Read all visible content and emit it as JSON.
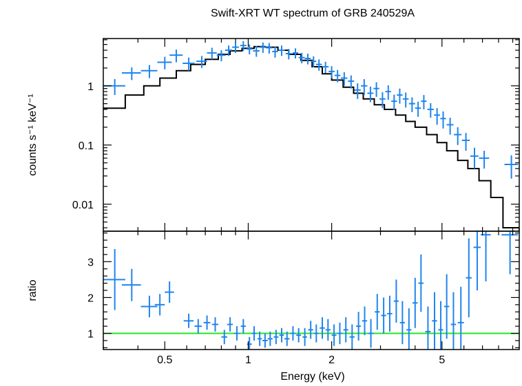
{
  "chart_data": {
    "type": "scatter",
    "title": "Swift-XRT WT spectrum of GRB 240529A",
    "xlabel": "Energy (keV)",
    "x_scale": "log",
    "xlim": [
      0.3,
      9.5
    ],
    "x_ticks": [
      0.5,
      1,
      2,
      5
    ],
    "x_tick_labels": [
      "0.5",
      "1",
      "2",
      "5"
    ],
    "colors": {
      "data": "#1f84ee",
      "model": "#000000",
      "unity_line": "#22e622",
      "frame": "#000000"
    },
    "panels": [
      {
        "name": "spectrum",
        "ylabel": "counts s⁻¹ keV⁻¹",
        "y_scale": "log",
        "ylim": [
          0.0035,
          6.3
        ],
        "y_ticks": [
          0.01,
          0.1,
          1
        ],
        "y_tick_labels": [
          "0.01",
          "0.1",
          "1"
        ],
        "data": {
          "x": [
            0.33,
            0.38,
            0.44,
            0.5,
            0.55,
            0.61,
            0.68,
            0.74,
            0.8,
            0.85,
            0.9,
            0.96,
            1.01,
            1.07,
            1.13,
            1.19,
            1.25,
            1.32,
            1.4,
            1.48,
            1.56,
            1.64,
            1.72,
            1.8,
            1.9,
            2.0,
            2.1,
            2.22,
            2.35,
            2.48,
            2.62,
            2.76,
            2.9,
            3.05,
            3.2,
            3.36,
            3.52,
            3.7,
            3.9,
            4.1,
            4.3,
            4.55,
            4.8,
            5.05,
            5.35,
            5.7,
            6.1,
            6.55,
            7.1,
            8.9
          ],
          "y": [
            1.0,
            1.65,
            1.8,
            2.5,
            3.3,
            2.4,
            2.6,
            3.6,
            3.3,
            4.0,
            4.5,
            4.8,
            4.2,
            3.9,
            4.5,
            4.4,
            3.8,
            4.0,
            3.5,
            3.6,
            3.0,
            2.9,
            2.6,
            2.3,
            2.1,
            1.75,
            1.5,
            1.35,
            1.2,
            0.85,
            1.0,
            0.75,
            0.9,
            0.6,
            0.8,
            0.55,
            0.7,
            0.6,
            0.5,
            0.42,
            0.55,
            0.4,
            0.32,
            0.28,
            0.22,
            0.15,
            0.12,
            0.065,
            0.06,
            0.047
          ],
          "xerr": [
            0.03,
            0.03,
            0.03,
            0.03,
            0.03,
            0.03,
            0.03,
            0.03,
            0.03,
            0.025,
            0.025,
            0.025,
            0.025,
            0.03,
            0.03,
            0.03,
            0.03,
            0.035,
            0.035,
            0.035,
            0.04,
            0.04,
            0.04,
            0.045,
            0.05,
            0.05,
            0.05,
            0.06,
            0.06,
            0.065,
            0.07,
            0.07,
            0.07,
            0.075,
            0.075,
            0.08,
            0.085,
            0.09,
            0.1,
            0.1,
            0.1,
            0.12,
            0.12,
            0.12,
            0.15,
            0.18,
            0.2,
            0.22,
            0.3,
            0.5
          ],
          "yerr": [
            0.3,
            0.4,
            0.45,
            0.6,
            0.8,
            0.6,
            0.6,
            0.8,
            0.7,
            0.8,
            0.9,
            0.9,
            0.8,
            0.8,
            0.9,
            0.9,
            0.8,
            0.8,
            0.7,
            0.7,
            0.6,
            0.6,
            0.55,
            0.5,
            0.45,
            0.4,
            0.35,
            0.35,
            0.3,
            0.25,
            0.3,
            0.22,
            0.25,
            0.18,
            0.22,
            0.16,
            0.2,
            0.17,
            0.14,
            0.12,
            0.15,
            0.11,
            0.1,
            0.09,
            0.07,
            0.05,
            0.04,
            0.025,
            0.02,
            0.02
          ]
        },
        "model_steps": {
          "edges": [
            0.3,
            0.36,
            0.42,
            0.48,
            0.55,
            0.62,
            0.7,
            0.78,
            0.86,
            0.95,
            1.05,
            1.15,
            1.28,
            1.4,
            1.55,
            1.7,
            1.85,
            2.0,
            2.2,
            2.4,
            2.6,
            2.85,
            3.1,
            3.4,
            3.7,
            4.0,
            4.4,
            4.8,
            5.2,
            5.7,
            6.2,
            6.8,
            7.5,
            8.3,
            9.5
          ],
          "values": [
            0.42,
            0.7,
            1.0,
            1.35,
            1.8,
            2.3,
            2.8,
            3.4,
            3.9,
            4.3,
            4.6,
            4.5,
            4.0,
            3.4,
            2.7,
            2.1,
            1.6,
            1.25,
            0.95,
            0.75,
            0.6,
            0.48,
            0.4,
            0.32,
            0.25,
            0.2,
            0.15,
            0.11,
            0.08,
            0.055,
            0.04,
            0.025,
            0.013,
            0.004
          ]
        }
      },
      {
        "name": "ratio",
        "ylabel": "ratio",
        "y_scale": "linear",
        "ylim": [
          0.55,
          3.85
        ],
        "y_ticks": [
          1,
          2,
          3
        ],
        "y_tick_labels": [
          "1",
          "2",
          "3"
        ],
        "reference_line": 1.0,
        "data": {
          "x": [
            0.33,
            0.38,
            0.44,
            0.48,
            0.52,
            0.61,
            0.66,
            0.71,
            0.76,
            0.82,
            0.86,
            0.91,
            0.96,
            1.01,
            1.05,
            1.1,
            1.15,
            1.2,
            1.26,
            1.32,
            1.38,
            1.45,
            1.52,
            1.6,
            1.68,
            1.76,
            1.85,
            1.94,
            2.04,
            2.14,
            2.25,
            2.37,
            2.5,
            2.63,
            2.77,
            2.92,
            3.08,
            3.24,
            3.42,
            3.6,
            3.8,
            4.0,
            4.2,
            4.45,
            4.7,
            4.95,
            5.2,
            5.5,
            5.85,
            6.25,
            6.7,
            7.2,
            8.8
          ],
          "y": [
            2.5,
            2.35,
            1.75,
            1.8,
            2.15,
            1.35,
            1.2,
            1.3,
            1.25,
            0.9,
            1.25,
            1.0,
            1.2,
            0.7,
            1.0,
            0.85,
            0.8,
            0.85,
            0.9,
            0.95,
            0.85,
            1.0,
            0.95,
            0.9,
            1.1,
            1.0,
            1.15,
            1.1,
            0.95,
            1.0,
            1.1,
            0.9,
            1.2,
            1.35,
            1.0,
            1.6,
            1.5,
            1.55,
            1.9,
            1.3,
            1.1,
            1.85,
            2.4,
            1.05,
            1.35,
            1.1,
            1.75,
            1.25,
            1.3,
            2.55,
            3.4,
            3.75,
            3.75
          ],
          "xerr": [
            0.03,
            0.03,
            0.03,
            0.02,
            0.02,
            0.025,
            0.02,
            0.02,
            0.02,
            0.02,
            0.02,
            0.02,
            0.02,
            0.02,
            0.02,
            0.02,
            0.025,
            0.025,
            0.025,
            0.025,
            0.03,
            0.03,
            0.03,
            0.03,
            0.035,
            0.035,
            0.04,
            0.04,
            0.04,
            0.045,
            0.045,
            0.05,
            0.05,
            0.055,
            0.06,
            0.06,
            0.065,
            0.07,
            0.07,
            0.075,
            0.08,
            0.085,
            0.09,
            0.1,
            0.1,
            0.1,
            0.11,
            0.12,
            0.15,
            0.15,
            0.2,
            0.3,
            0.6
          ],
          "yerr": [
            0.85,
            0.45,
            0.3,
            0.3,
            0.3,
            0.2,
            0.2,
            0.2,
            0.2,
            0.2,
            0.2,
            0.2,
            0.2,
            0.2,
            0.2,
            0.2,
            0.2,
            0.2,
            0.2,
            0.2,
            0.2,
            0.2,
            0.2,
            0.25,
            0.25,
            0.25,
            0.3,
            0.3,
            0.3,
            0.3,
            0.35,
            0.35,
            0.4,
            0.4,
            0.4,
            0.5,
            0.5,
            0.5,
            0.6,
            0.6,
            0.6,
            0.7,
            0.8,
            0.7,
            0.8,
            0.8,
            0.9,
            0.9,
            1.0,
            1.1,
            1.2,
            1.3,
            1.1
          ]
        }
      }
    ]
  }
}
